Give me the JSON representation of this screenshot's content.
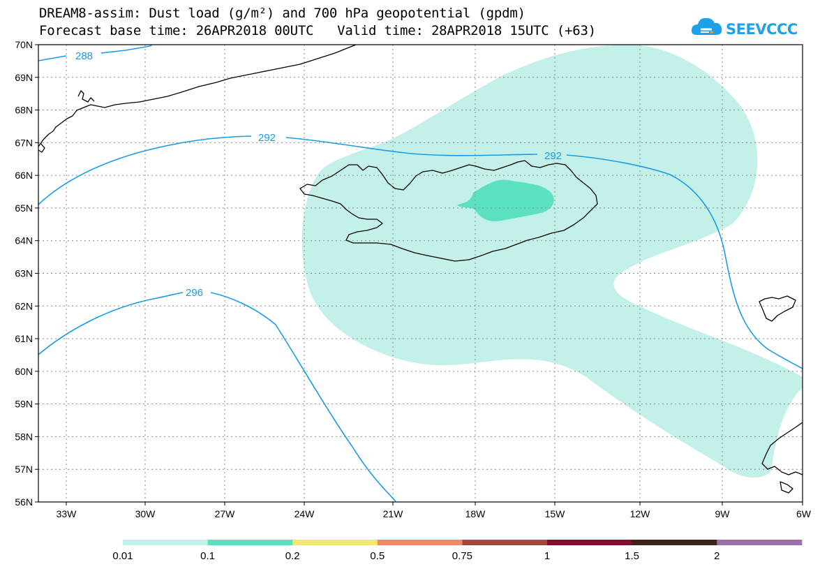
{
  "title": {
    "line1": "DREAM8-assim: Dust load (g/m²) and 700 hPa geopotential (gpdm)",
    "line2": "Forecast base time: 26APR2018 00UTC   Valid time: 28APR2018 15UTC (+63)"
  },
  "logo": {
    "text": "SEEVCCC",
    "color": "#1da1e8"
  },
  "map": {
    "lat_labels": [
      "70N",
      "69N",
      "68N",
      "67N",
      "66N",
      "65N",
      "64N",
      "63N",
      "62N",
      "61N",
      "60N",
      "59N",
      "58N",
      "57N",
      "56N"
    ],
    "lon_labels": [
      "33W",
      "30W",
      "27W",
      "24W",
      "21W",
      "18W",
      "15W",
      "12W",
      "9W",
      "6W"
    ],
    "contour_labels": [
      "288",
      "292",
      "292",
      "296"
    ],
    "contour_color": "#1a9be6",
    "coast_color": "#000000"
  },
  "legend": {
    "colors": [
      "#c4f0ea",
      "#5be0c0",
      "#f5e67a",
      "#e88c69",
      "#a24a40",
      "#7d0e2e",
      "#3b2417",
      "#9b70a8"
    ],
    "labels": [
      "0.01",
      "0.1",
      "0.2",
      "0.5",
      "0.75",
      "1",
      "1.5",
      "2"
    ]
  }
}
